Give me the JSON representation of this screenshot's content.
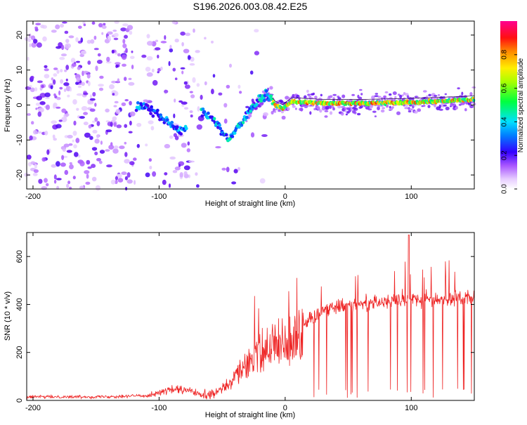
{
  "figure_title": "S196.2026.003.08.42.E25",
  "colors": {
    "snr_line": "#ee2222",
    "frame": "#000000",
    "background": "#ffffff",
    "colormap": [
      "#ffffff",
      "#e6ccff",
      "#b266ff",
      "#6600ee",
      "#1a00ff",
      "#00d0ff",
      "#00ff66",
      "#ffff00",
      "#ff7700",
      "#ff0000",
      "#ff00a0"
    ]
  },
  "chart_data": [
    {
      "type": "heatmap",
      "name": "spectrogram",
      "title": "",
      "xlabel": "Height of straight line (km)",
      "ylabel": "Frequency (Hz)",
      "xlim": [
        -205,
        150
      ],
      "ylim": [
        -24,
        24
      ],
      "xticks": [
        -200,
        -100,
        0,
        100
      ],
      "xtick_labels": [
        "-200",
        "-100",
        "0",
        "100"
      ],
      "yticks": [
        -20,
        -10,
        0,
        10,
        20
      ],
      "ytick_labels": [
        "-20",
        "-10",
        "0",
        "10",
        "20"
      ],
      "ridge": {
        "x": [
          -115,
          -100,
          -90,
          -82,
          -65,
          -55,
          -45,
          -35,
          -25,
          -14,
          -8,
          -2,
          5,
          30,
          60,
          100,
          150
        ],
        "y": [
          0,
          -3,
          -6,
          -8,
          -2,
          -5,
          -10,
          -5,
          0,
          3,
          0,
          -1,
          1,
          0.5,
          0.5,
          0.8,
          1.5
        ]
      },
      "colorbar": {
        "label": "Normalized spectral amplitude",
        "range": [
          0,
          1
        ],
        "ticks": [
          0.0,
          0.2,
          0.4,
          0.6,
          0.8
        ],
        "tick_labels": [
          "0.0",
          "0.2",
          "0.4",
          "0.6",
          "0.8"
        ]
      }
    },
    {
      "type": "line",
      "name": "snr",
      "title": "",
      "xlabel": "Height of straight line (km)",
      "ylabel": "SNR (10 * v/v)",
      "xlim": [
        -205,
        150
      ],
      "ylim": [
        0,
        700
      ],
      "xticks": [
        -200,
        -100,
        0,
        100
      ],
      "xtick_labels": [
        "-200",
        "-100",
        "0",
        "100"
      ],
      "yticks": [
        0,
        200,
        400,
        600
      ],
      "ytick_labels": [
        "0",
        "200",
        "400",
        "600"
      ],
      "envelope": {
        "x": [
          -205,
          -150,
          -110,
          -90,
          -75,
          -65,
          -55,
          -45,
          -35,
          -25,
          -15,
          -10,
          -5,
          0,
          10,
          20,
          30,
          50,
          70,
          90,
          100,
          120,
          150
        ],
        "y": [
          15,
          15,
          20,
          45,
          40,
          18,
          30,
          70,
          130,
          200,
          250,
          270,
          280,
          270,
          290,
          340,
          380,
          400,
          410,
          415,
          420,
          420,
          430
        ]
      }
    }
  ]
}
